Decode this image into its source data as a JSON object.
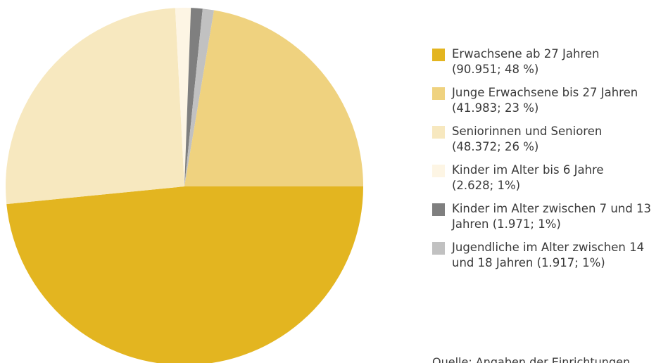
{
  "chart_data": {
    "type": "pie",
    "categories": [
      "Erwachsene ab 27 Jahren",
      "Junge Erwachsene bis 27 Jahren",
      "Seniorinnen und Senioren",
      "Kinder im Alter bis 6 Jahre",
      "Kinder im Alter zwischen 7 und 13 Jahren",
      "Jugendliche im Alter zwischen 14 und 18 Jahren"
    ],
    "values": [
      90951,
      41983,
      48372,
      2628,
      1971,
      1917
    ],
    "value_labels": [
      "(90.951; 48 %)",
      "(41.983; 23 %)",
      "(48.372; 26 %)",
      "(2.628; 1%)",
      "(1.971; 1%)",
      "(1.917; 1%)"
    ],
    "colors": [
      "#e3b520",
      "#efd27f",
      "#f7e8bf",
      "#fdf5e4",
      "#7f7f7f",
      "#c1c1c1"
    ],
    "source": "Quelle: Angaben der Einrichtungen"
  }
}
